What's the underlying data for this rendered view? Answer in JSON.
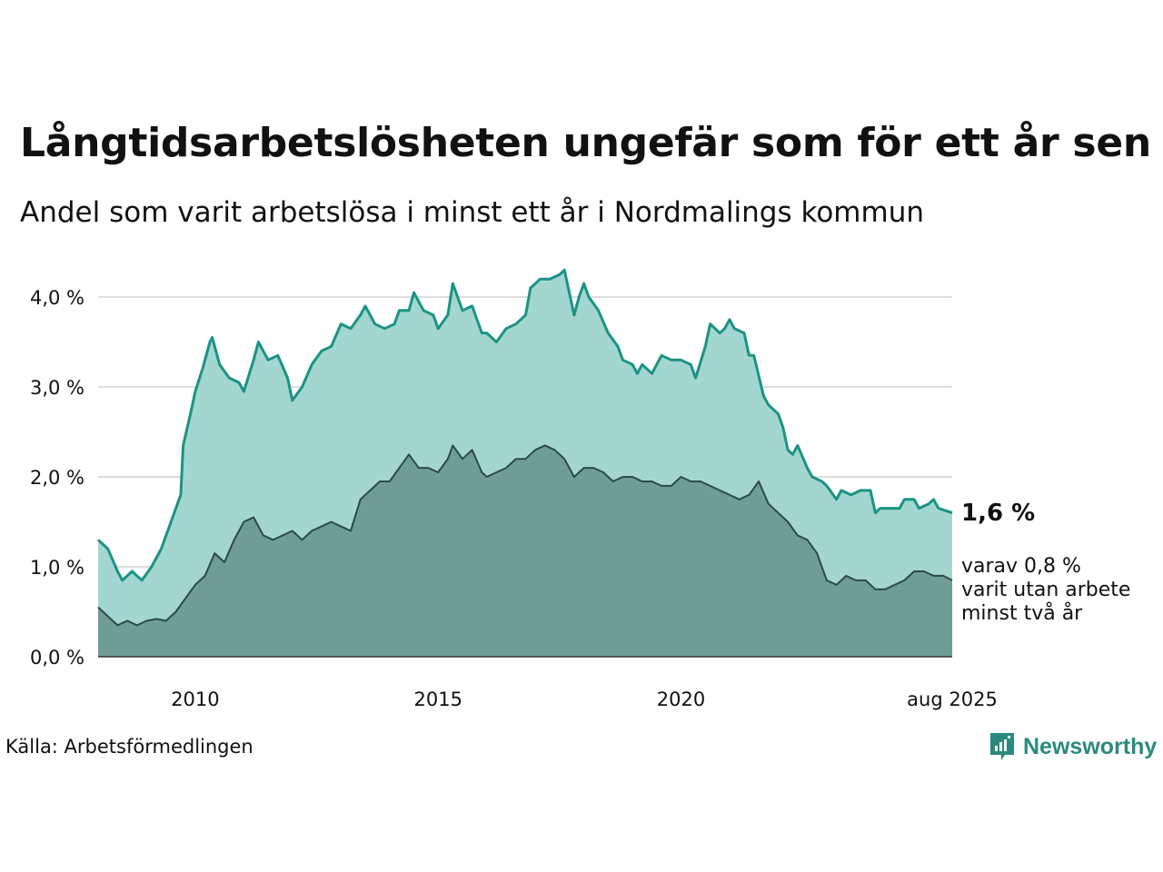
{
  "title": "Långtidsarbetslösheten ungefär som för ett år sen",
  "subtitle": "Andel som varit arbetslösa i minst ett år i Nordmalings kommun",
  "source": "Källa: Arbetsförmedlingen",
  "logo": {
    "text": "Newsworthy",
    "icon": "newsworthy-logo-icon"
  },
  "colors": {
    "total_line": "#1a9384",
    "total_fill": "#a3d6d0",
    "two_year_fill": "#6f9c96",
    "two_year_line": "#2c4a47",
    "grid": "#dddddd"
  },
  "annotations": {
    "total_label": "1,6 %",
    "sub_line1": "varav 0,8 %",
    "sub_line2": "varit utan arbete",
    "sub_line3": "minst två år"
  },
  "chart_data": {
    "type": "area",
    "x_ticks": [
      "2010",
      "2015",
      "2020",
      "aug 2025"
    ],
    "x_tick_values": [
      2010.0,
      2015.0,
      2020.0,
      2025.583
    ],
    "xlim": [
      2008.0,
      2025.583
    ],
    "y_ticks": [
      "0,0 %",
      "1,0 %",
      "2,0 %",
      "3,0 %",
      "4,0 %"
    ],
    "ylim": [
      0,
      4.4
    ],
    "grid": true,
    "series": [
      {
        "key": "total",
        "points": [
          [
            2008.0,
            1.3
          ],
          [
            2008.2,
            1.2
          ],
          [
            2008.4,
            0.95
          ],
          [
            2008.5,
            0.85
          ],
          [
            2008.7,
            0.95
          ],
          [
            2008.9,
            0.85
          ],
          [
            2009.1,
            1.0
          ],
          [
            2009.3,
            1.2
          ],
          [
            2009.5,
            1.5
          ],
          [
            2009.7,
            1.8
          ],
          [
            2009.75,
            2.35
          ],
          [
            2009.9,
            2.7
          ],
          [
            2010.0,
            2.95
          ],
          [
            2010.15,
            3.2
          ],
          [
            2010.3,
            3.5
          ],
          [
            2010.35,
            3.55
          ],
          [
            2010.5,
            3.25
          ],
          [
            2010.7,
            3.1
          ],
          [
            2010.9,
            3.05
          ],
          [
            2011.0,
            2.95
          ],
          [
            2011.2,
            3.3
          ],
          [
            2011.3,
            3.5
          ],
          [
            2011.5,
            3.3
          ],
          [
            2011.7,
            3.35
          ],
          [
            2011.9,
            3.1
          ],
          [
            2012.0,
            2.85
          ],
          [
            2012.2,
            3.0
          ],
          [
            2012.4,
            3.25
          ],
          [
            2012.6,
            3.4
          ],
          [
            2012.8,
            3.45
          ],
          [
            2013.0,
            3.7
          ],
          [
            2013.2,
            3.65
          ],
          [
            2013.4,
            3.8
          ],
          [
            2013.5,
            3.9
          ],
          [
            2013.7,
            3.7
          ],
          [
            2013.9,
            3.65
          ],
          [
            2014.1,
            3.7
          ],
          [
            2014.2,
            3.85
          ],
          [
            2014.4,
            3.85
          ],
          [
            2014.5,
            4.05
          ],
          [
            2014.7,
            3.85
          ],
          [
            2014.9,
            3.8
          ],
          [
            2015.0,
            3.65
          ],
          [
            2015.2,
            3.8
          ],
          [
            2015.3,
            4.15
          ],
          [
            2015.5,
            3.85
          ],
          [
            2015.7,
            3.9
          ],
          [
            2015.9,
            3.6
          ],
          [
            2016.0,
            3.6
          ],
          [
            2016.2,
            3.5
          ],
          [
            2016.4,
            3.65
          ],
          [
            2016.6,
            3.7
          ],
          [
            2016.8,
            3.8
          ],
          [
            2016.9,
            4.1
          ],
          [
            2017.1,
            4.2
          ],
          [
            2017.3,
            4.2
          ],
          [
            2017.5,
            4.25
          ],
          [
            2017.6,
            4.3
          ],
          [
            2017.8,
            3.8
          ],
          [
            2017.9,
            4.0
          ],
          [
            2018.0,
            4.15
          ],
          [
            2018.1,
            4.0
          ],
          [
            2018.3,
            3.85
          ],
          [
            2018.5,
            3.6
          ],
          [
            2018.7,
            3.45
          ],
          [
            2018.8,
            3.3
          ],
          [
            2019.0,
            3.25
          ],
          [
            2019.1,
            3.15
          ],
          [
            2019.2,
            3.25
          ],
          [
            2019.4,
            3.15
          ],
          [
            2019.6,
            3.35
          ],
          [
            2019.8,
            3.3
          ],
          [
            2020.0,
            3.3
          ],
          [
            2020.2,
            3.25
          ],
          [
            2020.3,
            3.1
          ],
          [
            2020.5,
            3.45
          ],
          [
            2020.6,
            3.7
          ],
          [
            2020.8,
            3.6
          ],
          [
            2020.9,
            3.65
          ],
          [
            2021.0,
            3.75
          ],
          [
            2021.1,
            3.65
          ],
          [
            2021.3,
            3.6
          ],
          [
            2021.4,
            3.35
          ],
          [
            2021.5,
            3.35
          ],
          [
            2021.7,
            2.9
          ],
          [
            2021.8,
            2.8
          ],
          [
            2022.0,
            2.7
          ],
          [
            2022.1,
            2.55
          ],
          [
            2022.2,
            2.3
          ],
          [
            2022.3,
            2.25
          ],
          [
            2022.4,
            2.35
          ],
          [
            2022.6,
            2.1
          ],
          [
            2022.7,
            2.0
          ],
          [
            2022.9,
            1.95
          ],
          [
            2023.0,
            1.9
          ],
          [
            2023.2,
            1.75
          ],
          [
            2023.3,
            1.85
          ],
          [
            2023.5,
            1.8
          ],
          [
            2023.7,
            1.85
          ],
          [
            2023.9,
            1.85
          ],
          [
            2024.0,
            1.6
          ],
          [
            2024.1,
            1.65
          ],
          [
            2024.3,
            1.65
          ],
          [
            2024.5,
            1.65
          ],
          [
            2024.6,
            1.75
          ],
          [
            2024.8,
            1.75
          ],
          [
            2024.9,
            1.65
          ],
          [
            2025.1,
            1.7
          ],
          [
            2025.2,
            1.75
          ],
          [
            2025.3,
            1.65
          ],
          [
            2025.583,
            1.6
          ]
        ]
      },
      {
        "key": "two_year",
        "points": [
          [
            2008.0,
            0.55
          ],
          [
            2008.2,
            0.45
          ],
          [
            2008.4,
            0.35
          ],
          [
            2008.6,
            0.4
          ],
          [
            2008.8,
            0.35
          ],
          [
            2009.0,
            0.4
          ],
          [
            2009.2,
            0.42
          ],
          [
            2009.4,
            0.4
          ],
          [
            2009.6,
            0.5
          ],
          [
            2009.8,
            0.65
          ],
          [
            2010.0,
            0.8
          ],
          [
            2010.2,
            0.9
          ],
          [
            2010.4,
            1.15
          ],
          [
            2010.6,
            1.05
          ],
          [
            2010.8,
            1.3
          ],
          [
            2011.0,
            1.5
          ],
          [
            2011.2,
            1.55
          ],
          [
            2011.4,
            1.35
          ],
          [
            2011.6,
            1.3
          ],
          [
            2011.8,
            1.35
          ],
          [
            2012.0,
            1.4
          ],
          [
            2012.2,
            1.3
          ],
          [
            2012.4,
            1.4
          ],
          [
            2012.6,
            1.45
          ],
          [
            2012.8,
            1.5
          ],
          [
            2013.0,
            1.45
          ],
          [
            2013.2,
            1.4
          ],
          [
            2013.4,
            1.75
          ],
          [
            2013.6,
            1.85
          ],
          [
            2013.8,
            1.95
          ],
          [
            2014.0,
            1.95
          ],
          [
            2014.2,
            2.1
          ],
          [
            2014.4,
            2.25
          ],
          [
            2014.6,
            2.1
          ],
          [
            2014.8,
            2.1
          ],
          [
            2015.0,
            2.05
          ],
          [
            2015.2,
            2.2
          ],
          [
            2015.3,
            2.35
          ],
          [
            2015.5,
            2.2
          ],
          [
            2015.7,
            2.3
          ],
          [
            2015.9,
            2.05
          ],
          [
            2016.0,
            2.0
          ],
          [
            2016.2,
            2.05
          ],
          [
            2016.4,
            2.1
          ],
          [
            2016.6,
            2.2
          ],
          [
            2016.8,
            2.2
          ],
          [
            2017.0,
            2.3
          ],
          [
            2017.2,
            2.35
          ],
          [
            2017.4,
            2.3
          ],
          [
            2017.6,
            2.2
          ],
          [
            2017.8,
            2.0
          ],
          [
            2018.0,
            2.1
          ],
          [
            2018.2,
            2.1
          ],
          [
            2018.4,
            2.05
          ],
          [
            2018.6,
            1.95
          ],
          [
            2018.8,
            2.0
          ],
          [
            2019.0,
            2.0
          ],
          [
            2019.2,
            1.95
          ],
          [
            2019.4,
            1.95
          ],
          [
            2019.6,
            1.9
          ],
          [
            2019.8,
            1.9
          ],
          [
            2020.0,
            2.0
          ],
          [
            2020.2,
            1.95
          ],
          [
            2020.4,
            1.95
          ],
          [
            2020.6,
            1.9
          ],
          [
            2020.8,
            1.85
          ],
          [
            2021.0,
            1.8
          ],
          [
            2021.2,
            1.75
          ],
          [
            2021.4,
            1.8
          ],
          [
            2021.6,
            1.95
          ],
          [
            2021.8,
            1.7
          ],
          [
            2022.0,
            1.6
          ],
          [
            2022.2,
            1.5
          ],
          [
            2022.4,
            1.35
          ],
          [
            2022.6,
            1.3
          ],
          [
            2022.8,
            1.15
          ],
          [
            2023.0,
            0.85
          ],
          [
            2023.2,
            0.8
          ],
          [
            2023.4,
            0.9
          ],
          [
            2023.6,
            0.85
          ],
          [
            2023.8,
            0.85
          ],
          [
            2024.0,
            0.75
          ],
          [
            2024.2,
            0.75
          ],
          [
            2024.4,
            0.8
          ],
          [
            2024.6,
            0.85
          ],
          [
            2024.8,
            0.95
          ],
          [
            2025.0,
            0.95
          ],
          [
            2025.2,
            0.9
          ],
          [
            2025.4,
            0.9
          ],
          [
            2025.583,
            0.85
          ]
        ]
      }
    ]
  }
}
